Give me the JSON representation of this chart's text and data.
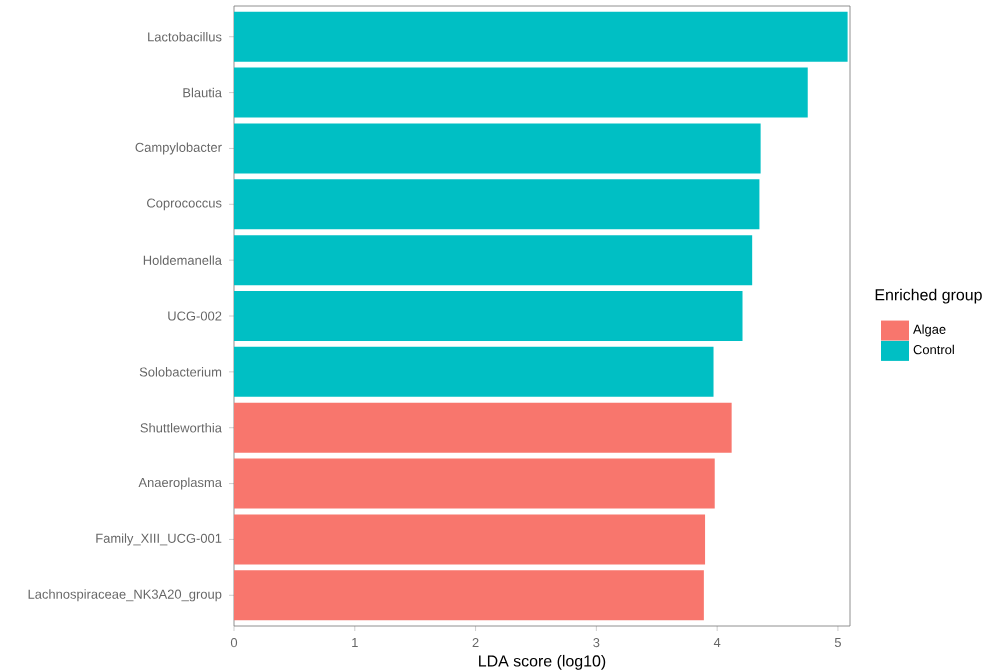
{
  "chart_data": {
    "type": "bar",
    "orientation": "horizontal",
    "xlabel": "LDA score (log10)",
    "legend_title": "Enriched group",
    "legend": "right",
    "categories": [
      "Lactobacillus",
      "Blautia",
      "Campylobacter",
      "Coprococcus",
      "Holdemanella",
      "UCG-002",
      "Solobacterium",
      "Shuttleworthia",
      "Anaeroplasma",
      "Family_XIII_UCG-001",
      "Lachnospiraceae_NK3A20_group"
    ],
    "series": [
      {
        "name": "Algae",
        "color": "#f8766d",
        "values": [
          null,
          null,
          null,
          null,
          null,
          null,
          null,
          4.12,
          3.98,
          3.9,
          3.89
        ]
      },
      {
        "name": "Control",
        "color": "#00bfc4",
        "values": [
          5.08,
          4.75,
          4.36,
          4.35,
          4.29,
          4.21,
          3.97,
          null,
          null,
          null,
          null
        ]
      }
    ],
    "xlim": [
      0,
      5.1
    ],
    "xticks": [
      0,
      1,
      2,
      3,
      4,
      5
    ],
    "grid": false
  }
}
